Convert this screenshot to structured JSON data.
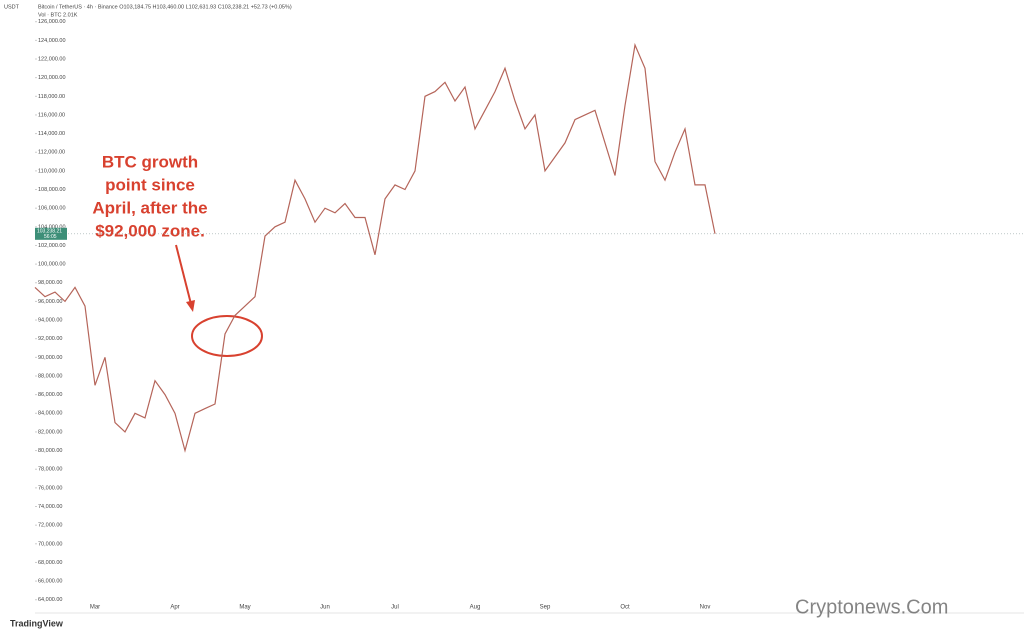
{
  "chart_data": {
    "type": "line",
    "quote_label": "USDT",
    "legend_line": "Bitcoin / TetherUS · 4h · Binance  O103,184.75 H103,460.00 L102,631.93 C103,238.21 +52.73 (+0.05%)",
    "volume_line": "Vol · BTC  2.01K",
    "annotation": [
      "BTC growth",
      "point since",
      "April, after the",
      "$92,000 zone."
    ],
    "price_tag": "103,238.21",
    "countdown": "56:05",
    "brand": "TradingView",
    "watermark": "Cryptonews.Com",
    "color": "#b5655a",
    "categories": [
      null,
      null,
      null,
      null,
      null,
      null,
      "Mar",
      null,
      null,
      null,
      null,
      null,
      null,
      null,
      "Apr",
      null,
      null,
      null,
      null,
      null,
      null,
      "May",
      null,
      null,
      null,
      null,
      null,
      null,
      null,
      "Jun",
      null,
      null,
      null,
      null,
      null,
      null,
      "Jul",
      null,
      null,
      null,
      null,
      null,
      null,
      null,
      "Aug",
      null,
      null,
      null,
      null,
      null,
      null,
      "Sep",
      null,
      null,
      null,
      null,
      null,
      null,
      null,
      "Oct",
      null,
      null,
      null,
      null,
      null,
      null,
      null,
      "Nov",
      null
    ],
    "values": [
      97500,
      96500,
      97000,
      96000,
      97500,
      95500,
      87000,
      90000,
      83000,
      82000,
      84000,
      83500,
      87500,
      86000,
      84000,
      80000,
      84000,
      84500,
      85000,
      92500,
      94500,
      95500,
      96500,
      103000,
      104000,
      104500,
      109000,
      107000,
      104500,
      106000,
      105500,
      106500,
      105000,
      105000,
      101000,
      107000,
      108500,
      108000,
      110000,
      118000,
      118500,
      119500,
      117500,
      119000,
      114500,
      116500,
      118500,
      121000,
      117500,
      114500,
      116000,
      110000,
      111500,
      113000,
      115500,
      116000,
      116500,
      113000,
      109500,
      117000,
      123500,
      121000,
      111000,
      109000,
      112000,
      114500,
      108500,
      108500,
      103250
    ],
    "ylim": [
      62900,
      127900
    ],
    "yticks": [
      {
        "value": 126000,
        "label": "126,000.00"
      },
      {
        "value": 124000,
        "label": "124,000.00"
      },
      {
        "value": 122000,
        "label": "122,000.00"
      },
      {
        "value": 120000,
        "label": "120,000.00"
      },
      {
        "value": 118000,
        "label": "118,000.00"
      },
      {
        "value": 116000,
        "label": "116,000.00"
      },
      {
        "value": 114000,
        "label": "114,000.00"
      },
      {
        "value": 112000,
        "label": "112,000.00"
      },
      {
        "value": 110000,
        "label": "110,000.00"
      },
      {
        "value": 108000,
        "label": "108,000.00"
      },
      {
        "value": 106000,
        "label": "106,000.00"
      },
      {
        "value": 104000,
        "label": "104,000.00"
      },
      {
        "value": 102000,
        "label": "102,000.00"
      },
      {
        "value": 100000,
        "label": "100,000.00"
      },
      {
        "value": 98000,
        "label": "98,000.00"
      },
      {
        "value": 96000,
        "label": "96,000.00"
      },
      {
        "value": 94000,
        "label": "94,000.00"
      },
      {
        "value": 92000,
        "label": "92,000.00"
      },
      {
        "value": 90000,
        "label": "90,000.00"
      },
      {
        "value": 88000,
        "label": "88,000.00"
      },
      {
        "value": 86000,
        "label": "86,000.00"
      },
      {
        "value": 84000,
        "label": "84,000.00"
      },
      {
        "value": 82000,
        "label": "82,000.00"
      },
      {
        "value": 80000,
        "label": "80,000.00"
      },
      {
        "value": 78000,
        "label": "78,000.00"
      },
      {
        "value": 76000,
        "label": "76,000.00"
      },
      {
        "value": 74000,
        "label": "74,000.00"
      },
      {
        "value": 72000,
        "label": "72,000.00"
      },
      {
        "value": 70000,
        "label": "70,000.00"
      },
      {
        "value": 68000,
        "label": "68,000.00"
      },
      {
        "value": 66000,
        "label": "66,000.00"
      },
      {
        "value": 64000,
        "label": "64,000.00"
      }
    ],
    "grid": false
  }
}
